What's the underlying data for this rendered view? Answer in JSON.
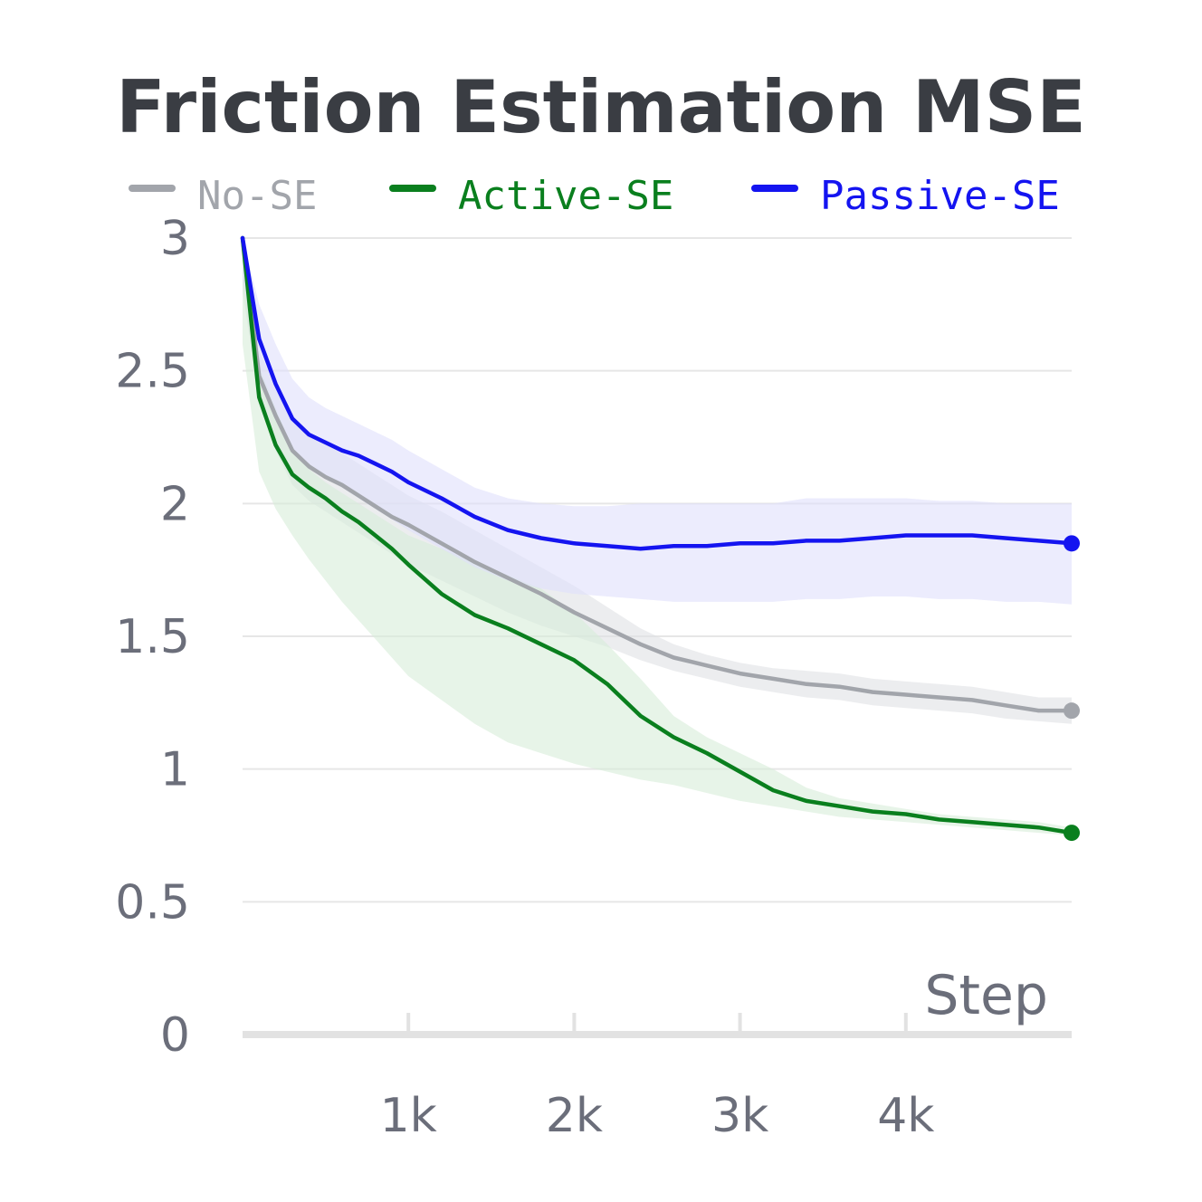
{
  "chart_data": {
    "type": "line",
    "title": "Friction Estimation MSE",
    "xlabel": "Step",
    "ylabel": "",
    "xlim": [
      0,
      5000
    ],
    "ylim": [
      0,
      3
    ],
    "grid": true,
    "legend_position": "top",
    "yticks": [
      "0",
      "0.5",
      "1",
      "1.5",
      "2",
      "2.5",
      "3"
    ],
    "xticks": [
      {
        "value": 1000,
        "label": "1k"
      },
      {
        "value": 2000,
        "label": "2k"
      },
      {
        "value": 3000,
        "label": "3k"
      },
      {
        "value": 4000,
        "label": "4k"
      }
    ],
    "x": [
      0,
      100,
      200,
      300,
      400,
      500,
      600,
      700,
      800,
      900,
      1000,
      1200,
      1400,
      1600,
      1800,
      2000,
      2200,
      2400,
      2600,
      2800,
      3000,
      3200,
      3400,
      3600,
      3800,
      4000,
      4200,
      4400,
      4600,
      4800,
      5000
    ],
    "series": [
      {
        "name": "No-SE",
        "color": "#a2a5ab",
        "band_color": "#dfe1e4",
        "values": [
          3.0,
          2.48,
          2.33,
          2.2,
          2.14,
          2.1,
          2.07,
          2.03,
          1.99,
          1.95,
          1.92,
          1.85,
          1.78,
          1.72,
          1.66,
          1.59,
          1.53,
          1.47,
          1.42,
          1.39,
          1.36,
          1.34,
          1.32,
          1.31,
          1.29,
          1.28,
          1.27,
          1.26,
          1.24,
          1.22,
          1.22
        ],
        "lower": [
          2.8,
          2.38,
          2.2,
          2.07,
          2.01,
          1.97,
          1.93,
          1.89,
          1.85,
          1.81,
          1.77,
          1.71,
          1.65,
          1.59,
          1.54,
          1.5,
          1.46,
          1.41,
          1.37,
          1.34,
          1.31,
          1.29,
          1.27,
          1.26,
          1.24,
          1.23,
          1.22,
          1.21,
          1.19,
          1.18,
          1.17
        ],
        "upper": [
          3.0,
          2.58,
          2.43,
          2.32,
          2.26,
          2.22,
          2.19,
          2.15,
          2.11,
          2.07,
          2.03,
          1.97,
          1.9,
          1.83,
          1.76,
          1.69,
          1.61,
          1.53,
          1.47,
          1.43,
          1.4,
          1.38,
          1.37,
          1.36,
          1.34,
          1.33,
          1.32,
          1.31,
          1.29,
          1.27,
          1.27
        ]
      },
      {
        "name": "Active-SE",
        "color": "#0a7f1e",
        "band_color": "#d7ecd8",
        "values": [
          3.0,
          2.4,
          2.22,
          2.11,
          2.06,
          2.02,
          1.97,
          1.93,
          1.88,
          1.83,
          1.77,
          1.66,
          1.58,
          1.53,
          1.47,
          1.41,
          1.32,
          1.2,
          1.12,
          1.06,
          0.99,
          0.92,
          0.88,
          0.86,
          0.84,
          0.83,
          0.81,
          0.8,
          0.79,
          0.78,
          0.76
        ],
        "lower": [
          2.6,
          2.12,
          1.98,
          1.88,
          1.79,
          1.71,
          1.63,
          1.56,
          1.49,
          1.42,
          1.35,
          1.26,
          1.17,
          1.1,
          1.06,
          1.02,
          0.99,
          0.96,
          0.94,
          0.91,
          0.88,
          0.86,
          0.84,
          0.82,
          0.81,
          0.8,
          0.79,
          0.78,
          0.77,
          0.76,
          0.75
        ],
        "upper": [
          3.0,
          2.52,
          2.36,
          2.21,
          2.13,
          2.08,
          2.04,
          2.0,
          1.96,
          1.92,
          1.88,
          1.83,
          1.78,
          1.73,
          1.68,
          1.59,
          1.47,
          1.34,
          1.2,
          1.12,
          1.06,
          1.0,
          0.93,
          0.89,
          0.87,
          0.85,
          0.83,
          0.82,
          0.81,
          0.8,
          0.78
        ]
      },
      {
        "name": "Passive-SE",
        "color": "#1414f0",
        "band_color": "#e0e0fb",
        "values": [
          3.0,
          2.62,
          2.45,
          2.32,
          2.26,
          2.23,
          2.2,
          2.18,
          2.15,
          2.12,
          2.08,
          2.02,
          1.95,
          1.9,
          1.87,
          1.85,
          1.84,
          1.83,
          1.84,
          1.84,
          1.85,
          1.85,
          1.86,
          1.86,
          1.87,
          1.88,
          1.88,
          1.88,
          1.87,
          1.86,
          1.85
        ],
        "lower": [
          2.85,
          2.5,
          2.32,
          2.2,
          2.14,
          2.1,
          2.06,
          2.02,
          1.98,
          1.94,
          1.9,
          1.83,
          1.76,
          1.71,
          1.68,
          1.66,
          1.65,
          1.64,
          1.63,
          1.63,
          1.63,
          1.63,
          1.64,
          1.64,
          1.65,
          1.65,
          1.64,
          1.64,
          1.63,
          1.63,
          1.62
        ],
        "upper": [
          3.0,
          2.75,
          2.6,
          2.47,
          2.4,
          2.36,
          2.33,
          2.3,
          2.27,
          2.24,
          2.2,
          2.13,
          2.06,
          2.02,
          2.0,
          1.99,
          1.99,
          2.0,
          2.0,
          2.0,
          2.0,
          2.0,
          2.02,
          2.02,
          2.02,
          2.02,
          2.01,
          2.01,
          2.0,
          2.0,
          2.0
        ]
      }
    ]
  }
}
